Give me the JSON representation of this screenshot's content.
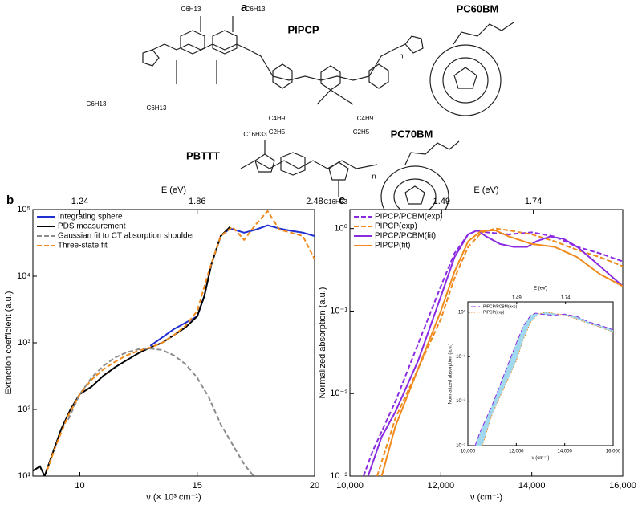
{
  "figure": {
    "panel_labels": [
      "a",
      "b",
      "c"
    ]
  },
  "structures": {
    "labels": [
      "PIPCP",
      "PC60BM",
      "PBTTT",
      "PC70BM",
      "C6H13",
      "C6H13",
      "C6H13",
      "C6H13",
      "C4H9",
      "C4H9",
      "C2H5",
      "C2H5",
      "C16H33",
      "C16H33",
      "n",
      "n"
    ]
  },
  "chart_data": [
    {
      "type": "line",
      "log_y": true,
      "legend": "upper left",
      "xlabel": "ν (× 10³ cm⁻¹)",
      "ylabel": "Extinction coefficient (a.u.)",
      "x2label": "E (eV)",
      "xlim": [
        8,
        20
      ],
      "ylim": [
        10,
        100000
      ],
      "xticks": [
        10,
        15,
        20
      ],
      "x2ticks": [
        {
          "value": 10,
          "label": "1.24"
        },
        {
          "value": 15,
          "label": "1.86"
        },
        {
          "value": 20,
          "label": "2.48"
        }
      ],
      "yticks": [
        {
          "value": 10,
          "label": "10¹"
        },
        {
          "value": 100,
          "label": "10²"
        },
        {
          "value": 1000,
          "label": "10³"
        },
        {
          "value": 10000,
          "label": "10⁴"
        },
        {
          "value": 100000,
          "label": "10⁵"
        }
      ],
      "series": [
        {
          "name": "Integrating sphere",
          "color": "#1f2fd0",
          "line_style": "solid",
          "x": [
            13,
            13.5,
            14,
            14.5,
            15,
            15.3,
            15.6,
            16,
            16.4,
            17,
            17.5,
            18,
            18.5,
            19,
            19.5,
            20
          ],
          "values": [
            900,
            1200,
            1600,
            2000,
            2500,
            5000,
            15000,
            40000,
            52000,
            45000,
            50000,
            58000,
            52000,
            48000,
            45000,
            40000
          ]
        },
        {
          "name": "PDS measurement",
          "color": "#000000",
          "line_style": "solid",
          "x": [
            8,
            8.3,
            8.5,
            8.8,
            9.2,
            9.6,
            10,
            10.5,
            11,
            11.5,
            12,
            12.5,
            13,
            13.5,
            14,
            14.5,
            15,
            15.3,
            15.6,
            16,
            16.4
          ],
          "values": [
            12,
            14,
            10,
            20,
            50,
            100,
            170,
            220,
            320,
            430,
            550,
            700,
            850,
            1000,
            1300,
            1700,
            2500,
            5000,
            15000,
            40000,
            55000
          ]
        },
        {
          "name": "Gaussian fit to CT absorption shoulder",
          "color": "#8c8c8c",
          "line_style": "dashed",
          "x": [
            9.5,
            10,
            10.5,
            11,
            11.5,
            12,
            12.5,
            13,
            13.5,
            14,
            14.5,
            15,
            15.5,
            16,
            16.5,
            17,
            17.4
          ],
          "values": [
            70,
            170,
            300,
            450,
            600,
            720,
            800,
            820,
            780,
            650,
            480,
            300,
            150,
            60,
            30,
            15,
            10
          ]
        },
        {
          "name": "Three-state fit",
          "color": "#f08a1c",
          "line_style": "dashed",
          "x": [
            8.6,
            9,
            9.5,
            10,
            10.5,
            11,
            11.5,
            12,
            12.5,
            13,
            13.5,
            14,
            14.5,
            15,
            15.5,
            16,
            16.5,
            17,
            17.5,
            18,
            18.5,
            19,
            19.5,
            20
          ],
          "values": [
            12,
            30,
            80,
            170,
            280,
            400,
            520,
            650,
            760,
            850,
            1000,
            1300,
            1800,
            3000,
            12000,
            40000,
            55000,
            35000,
            60000,
            95000,
            50000,
            45000,
            40000,
            18000
          ]
        }
      ]
    },
    {
      "type": "line",
      "log_y": true,
      "legend": "upper left",
      "xlabel": "ν (cm⁻¹)",
      "ylabel": "Normalized absorption (a.u.)",
      "x2label": "E (eV)",
      "xlim": [
        10000,
        16000
      ],
      "ylim": [
        0.001,
        1.7
      ],
      "xticks": [
        {
          "value": 10000,
          "label": "10,000"
        },
        {
          "value": 12000,
          "label": "12,000"
        },
        {
          "value": 14000,
          "label": "14,000"
        },
        {
          "value": 16000,
          "label": "16,000"
        }
      ],
      "x2ticks": [
        {
          "value": 12018,
          "label": "1.49"
        },
        {
          "value": 14034,
          "label": "1.74"
        }
      ],
      "yticks": [
        {
          "value": 0.001,
          "label": "10⁻³"
        },
        {
          "value": 0.01,
          "label": "10⁻²"
        },
        {
          "value": 0.1,
          "label": "10⁻¹"
        },
        {
          "value": 1,
          "label": "10⁰"
        }
      ],
      "series": [
        {
          "name": "PIPCP/PCBM(exp)",
          "color": "#8a2be2",
          "line_style": "dashed",
          "x": [
            10300,
            10500,
            11000,
            11500,
            12000,
            12300,
            12600,
            12800,
            13000,
            13500,
            14000,
            14500,
            15000,
            15500,
            16000
          ],
          "values": [
            0.001,
            0.002,
            0.008,
            0.04,
            0.2,
            0.5,
            0.85,
            0.95,
            0.9,
            0.85,
            0.9,
            0.8,
            0.6,
            0.5,
            0.4
          ]
        },
        {
          "name": "PIPCP(exp)",
          "color": "#f08a1c",
          "line_style": "dashed",
          "x": [
            10600,
            11000,
            11500,
            12000,
            12300,
            12600,
            12900,
            13200,
            13500,
            14000,
            14500,
            15000,
            15500,
            16000
          ],
          "values": [
            0.001,
            0.005,
            0.02,
            0.08,
            0.25,
            0.6,
            0.9,
            1.0,
            0.95,
            0.85,
            0.7,
            0.55,
            0.45,
            0.35
          ]
        },
        {
          "name": "PIPCP/PCBM(fit)",
          "color": "#8a2be2",
          "line_style": "solid",
          "x": [
            10400,
            10700,
            11000,
            11500,
            12000,
            12300,
            12600,
            12800,
            13000,
            13300,
            13600,
            13900,
            14100,
            14400,
            14700,
            15000,
            15500,
            16000
          ],
          "values": [
            0.001,
            0.003,
            0.006,
            0.025,
            0.15,
            0.45,
            0.85,
            0.95,
            0.8,
            0.65,
            0.6,
            0.6,
            0.7,
            0.8,
            0.75,
            0.6,
            0.35,
            0.2
          ]
        },
        {
          "name": "PIPCP(fit)",
          "color": "#f08a1c",
          "line_style": "solid",
          "x": [
            10700,
            11000,
            11500,
            12000,
            12300,
            12600,
            12900,
            13200,
            13500,
            14000,
            14500,
            15000,
            15500,
            16000
          ],
          "values": [
            0.001,
            0.004,
            0.02,
            0.1,
            0.3,
            0.7,
            0.95,
            0.95,
            0.8,
            0.65,
            0.6,
            0.45,
            0.28,
            0.2
          ]
        }
      ]
    },
    {
      "type": "line",
      "log_y": true,
      "legend": "upper left",
      "shade_color": "#9fd8ef",
      "xlabel": "ν (cm⁻¹)",
      "ylabel": "Normalized absorption (a.u.)",
      "x2label": "E (eV)",
      "xlim": [
        10000,
        16000
      ],
      "ylim": [
        0.001,
        1.7
      ],
      "xticks": [
        {
          "value": 10000,
          "label": "10,000"
        },
        {
          "value": 12000,
          "label": "12,000"
        },
        {
          "value": 14000,
          "label": "14,000"
        },
        {
          "value": 16000,
          "label": "16,000"
        }
      ],
      "x2ticks": [
        {
          "value": 12018,
          "label": "1.49"
        },
        {
          "value": 14034,
          "label": "1.74"
        }
      ],
      "yticks": [
        {
          "value": 0.001,
          "label": "10⁻³"
        },
        {
          "value": 0.01,
          "label": "10⁻²"
        },
        {
          "value": 0.1,
          "label": "10⁻¹"
        },
        {
          "value": 1,
          "label": "10⁰"
        }
      ],
      "series": [
        {
          "name": "PIPCP/PCBM(exp)",
          "color": "#8a2be2",
          "line_style": "dashed",
          "x": [
            10300,
            10500,
            11000,
            11500,
            12000,
            12300,
            12600,
            12800,
            13000,
            13500,
            14000,
            14500,
            15000,
            15500,
            16000
          ],
          "values": [
            0.001,
            0.002,
            0.008,
            0.04,
            0.2,
            0.5,
            0.85,
            0.95,
            0.9,
            0.85,
            0.9,
            0.8,
            0.6,
            0.5,
            0.4
          ]
        },
        {
          "name": "PIPCP(exp)",
          "color": "#f08a1c",
          "line_style": "dotted",
          "x": [
            10600,
            11000,
            11500,
            12000,
            12300,
            12600,
            12900,
            13200,
            13500,
            14000,
            14500,
            15000,
            15500,
            16000
          ],
          "values": [
            0.001,
            0.005,
            0.02,
            0.08,
            0.25,
            0.6,
            0.9,
            1.0,
            0.95,
            0.85,
            0.7,
            0.55,
            0.45,
            0.35
          ]
        }
      ]
    }
  ]
}
